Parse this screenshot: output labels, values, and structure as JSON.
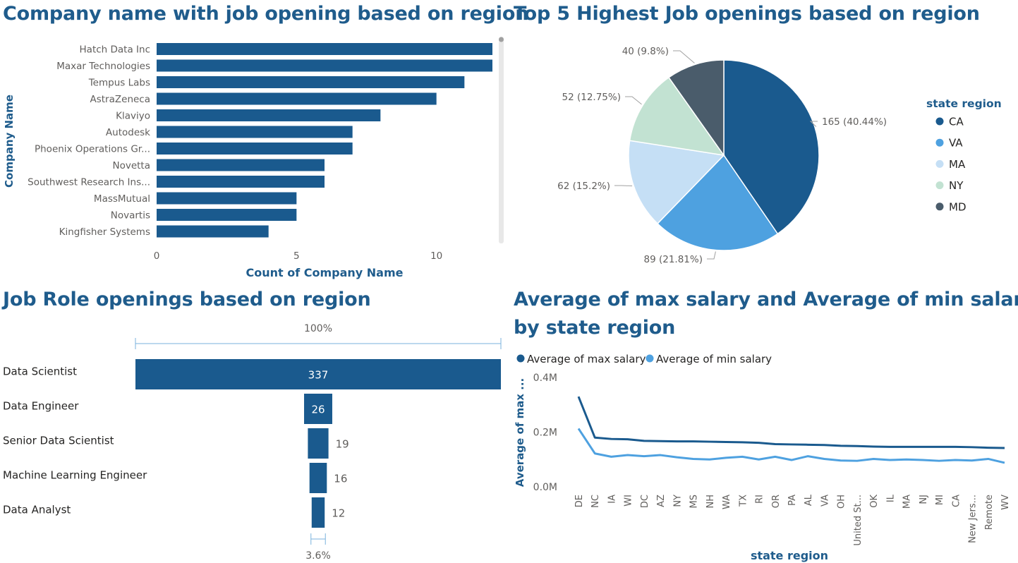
{
  "colors": {
    "title": "#1f5c8c",
    "bar": "#1a5a8e",
    "max_line": "#1a5a8e",
    "min_line": "#4ea1e0",
    "axis_text": "#605e5c",
    "label_text": "#252423"
  },
  "panel1": {
    "title": "Company name with job opening based on region"
  },
  "panel2": {
    "title": "Top 5 Highest Job openings based on region"
  },
  "panel3": {
    "title": "Job Role openings based on region",
    "top_percent": "100%",
    "bottom_percent": "3.6%"
  },
  "panel4": {
    "title_line1": "Average of max salary and Average of min salary",
    "title_line2": "by state region"
  },
  "chart_data": [
    {
      "type": "bar",
      "orientation": "horizontal",
      "title": "Company name with job opening based on region",
      "categories": [
        "Hatch Data Inc",
        "Maxar Technologies",
        "Tempus Labs",
        "AstraZeneca",
        "Klaviyo",
        "Autodesk",
        "Phoenix Operations Gr...",
        "Novetta",
        "Southwest Research Ins...",
        "MassMutual",
        "Novartis",
        "Kingfisher Systems"
      ],
      "values": [
        12,
        12,
        11,
        10,
        8,
        7,
        7,
        6,
        6,
        5,
        5,
        4
      ],
      "xlabel": "Count of Company Name",
      "ylabel": "Company Name",
      "xticks": [
        "0",
        "5",
        "10"
      ],
      "xlim": [
        0,
        12
      ]
    },
    {
      "type": "pie",
      "title": "Top 5 Highest Job openings based on region",
      "legend_title": "state region",
      "legend_position": "right",
      "slices": [
        {
          "label": "CA",
          "value": 165,
          "display": "165 (40.44%)",
          "color": "#1a5a8e"
        },
        {
          "label": "VA",
          "value": 89,
          "display": "89 (21.81%)",
          "color": "#4ea1e0"
        },
        {
          "label": "MA",
          "value": 62,
          "display": "62 (15.2%)",
          "color": "#c5dff5"
        },
        {
          "label": "NY",
          "value": 52,
          "display": "52 (12.75%)",
          "color": "#c2e2d2"
        },
        {
          "label": "MD",
          "value": 40,
          "display": "40 (9.8%)",
          "color": "#4a5c6b"
        }
      ]
    },
    {
      "type": "bar",
      "subtype": "funnel",
      "title": "Job Role openings based on region",
      "categories": [
        "Data Scientist",
        "Data Engineer",
        "Senior Data Scientist",
        "Machine Learning Engineer",
        "Data Analyst"
      ],
      "values": [
        337,
        26,
        19,
        16,
        12
      ],
      "top_label": "100%",
      "bottom_label": "3.6%"
    },
    {
      "type": "line",
      "title": "Average of max salary and Average of min salary by state region",
      "xlabel": "state region",
      "ylabel": "Average of max ...",
      "yticks": [
        "0.0M",
        "0.2M",
        "0.4M"
      ],
      "ylim": [
        0,
        0.4
      ],
      "legend_position": "top-left",
      "x": [
        "DE",
        "NC",
        "IA",
        "WI",
        "DC",
        "AZ",
        "NY",
        "MS",
        "NH",
        "WA",
        "TX",
        "RI",
        "OR",
        "PA",
        "AL",
        "VA",
        "OH",
        "United St...",
        "OK",
        "IL",
        "MA",
        "NJ",
        "MI",
        "CA",
        "New Jers...",
        "Remote",
        "WV"
      ],
      "series": [
        {
          "name": "Average of max salary",
          "color": "#1a5a8e",
          "values": [
            0.33,
            0.18,
            0.175,
            0.174,
            0.168,
            0.167,
            0.166,
            0.166,
            0.165,
            0.164,
            0.163,
            0.161,
            0.156,
            0.155,
            0.154,
            0.153,
            0.15,
            0.149,
            0.147,
            0.146,
            0.146,
            0.146,
            0.146,
            0.146,
            0.145,
            0.143,
            0.142
          ]
        },
        {
          "name": "Average of min salary",
          "color": "#4ea1e0",
          "values": [
            0.213,
            0.122,
            0.11,
            0.116,
            0.112,
            0.116,
            0.108,
            0.102,
            0.1,
            0.106,
            0.11,
            0.1,
            0.11,
            0.098,
            0.112,
            0.102,
            0.096,
            0.095,
            0.102,
            0.098,
            0.1,
            0.098,
            0.095,
            0.098,
            0.096,
            0.102,
            0.088
          ]
        }
      ]
    }
  ]
}
